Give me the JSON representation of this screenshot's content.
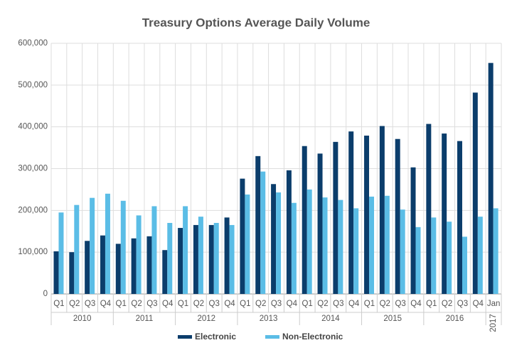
{
  "chart_data": {
    "type": "bar",
    "title": "Treasury Options Average Daily Volume",
    "groups": [
      {
        "name": "2010",
        "categories": [
          "Q1",
          "Q2",
          "Q3",
          "Q4"
        ]
      },
      {
        "name": "2011",
        "categories": [
          "Q1",
          "Q2",
          "Q3",
          "Q4"
        ]
      },
      {
        "name": "2012",
        "categories": [
          "Q1",
          "Q2",
          "Q3",
          "Q4"
        ]
      },
      {
        "name": "2013",
        "categories": [
          "Q1",
          "Q2",
          "Q3",
          "Q4"
        ]
      },
      {
        "name": "2014",
        "categories": [
          "Q1",
          "Q2",
          "Q3",
          "Q4"
        ]
      },
      {
        "name": "2015",
        "categories": [
          "Q1",
          "Q2",
          "Q3",
          "Q4"
        ]
      },
      {
        "name": "2016",
        "categories": [
          "Q1",
          "Q2",
          "Q3",
          "Q4"
        ]
      },
      {
        "name": "2017",
        "categories": [
          "Jan"
        ]
      }
    ],
    "series": [
      {
        "name": "Electronic",
        "color": "#0b3d6b",
        "values": [
          102000,
          100000,
          127000,
          140000,
          120000,
          133000,
          138000,
          105000,
          158000,
          165000,
          165000,
          183000,
          276000,
          330000,
          263000,
          296000,
          354000,
          336000,
          364000,
          389000,
          379000,
          402000,
          371000,
          303000,
          407000,
          384000,
          366000,
          482000,
          553000
        ]
      },
      {
        "name": "Non-Electronic",
        "color": "#5bbde6",
        "values": [
          195000,
          213000,
          230000,
          240000,
          223000,
          188000,
          210000,
          170000,
          210000,
          185000,
          170000,
          165000,
          238000,
          293000,
          243000,
          218000,
          250000,
          231000,
          225000,
          205000,
          233000,
          235000,
          202000,
          160000,
          183000,
          173000,
          137000,
          185000,
          205000
        ]
      }
    ],
    "ylim": [
      0,
      600000
    ],
    "yticks": [
      0,
      {
        "value": 100000,
        "label": "100,000"
      },
      {
        "value": 200000,
        "label": "200,000"
      },
      {
        "value": 300000,
        "label": "300,000"
      },
      {
        "value": 400000,
        "label": "400,000"
      },
      {
        "value": 500000,
        "label": "500,000"
      },
      {
        "value": 600000,
        "label": "600,000"
      }
    ],
    "grid": true
  }
}
